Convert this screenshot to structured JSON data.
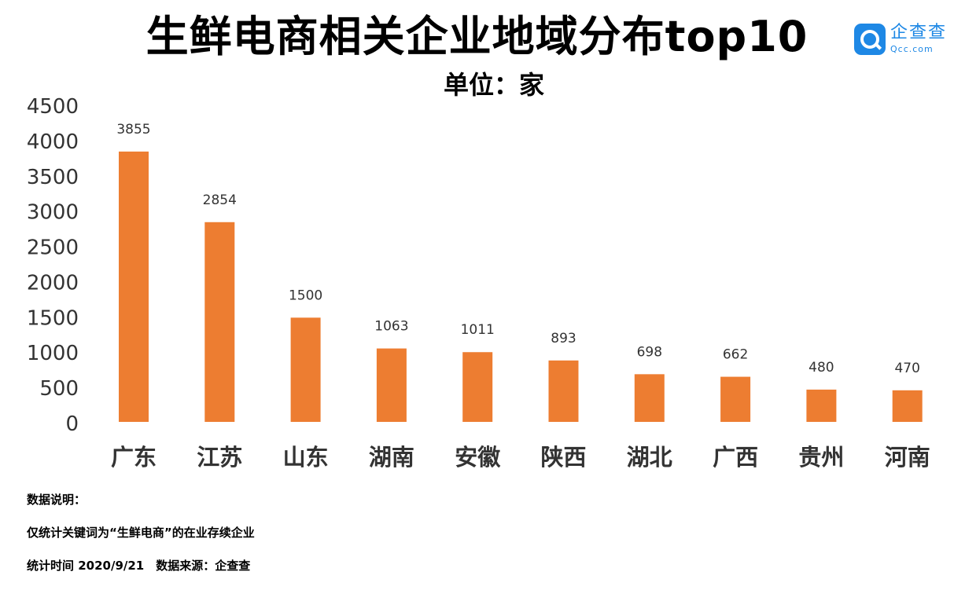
{
  "title": "生鲜电商相关企业地域分布top10",
  "subtitle": "单位：家",
  "logo": {
    "cn": "企查查",
    "en": "Qcc.com",
    "icon": "qcc-search-icon",
    "color": "#1e88e5"
  },
  "notes": {
    "heading": "数据说明：",
    "line1": "仅统计关键词为“生鲜电商”的在业存续企业",
    "line2": "统计时间 2020/9/21　数据来源：企查查"
  },
  "chart_data": {
    "type": "bar",
    "categories": [
      "广东",
      "江苏",
      "山东",
      "湖南",
      "安徽",
      "陕西",
      "湖北",
      "广西",
      "贵州",
      "河南"
    ],
    "values": [
      3855,
      2854,
      1500,
      1063,
      1011,
      893,
      698,
      662,
      480,
      470
    ],
    "ylim": [
      0,
      4500
    ],
    "yticks": [
      0,
      500,
      1000,
      1500,
      2000,
      2500,
      3000,
      3500,
      4000,
      4500
    ],
    "grid": false,
    "legend": "none",
    "bar_color": "#ed7d31"
  }
}
